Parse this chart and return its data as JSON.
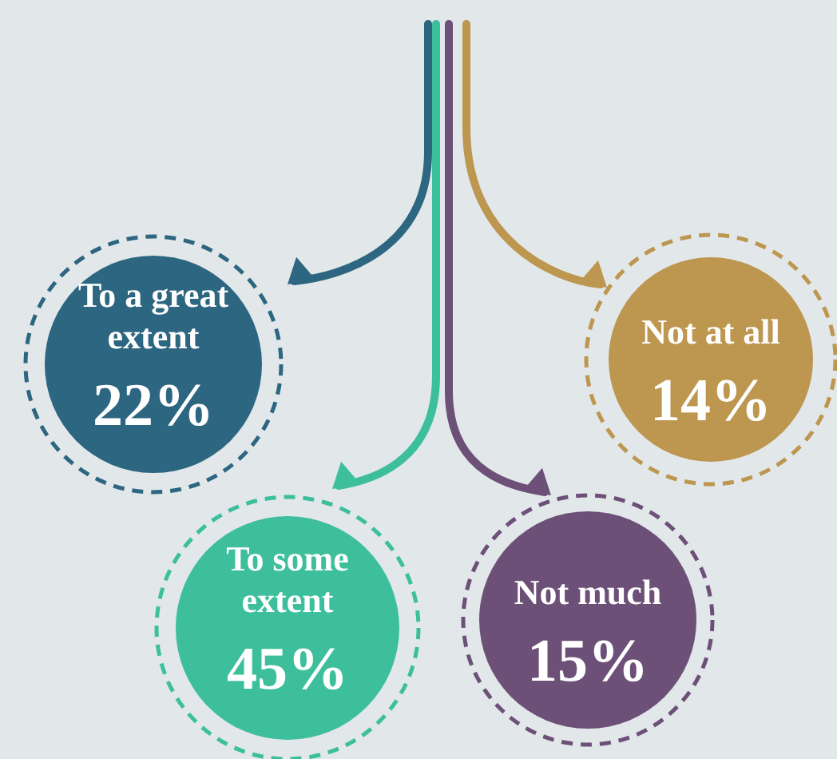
{
  "chart_data": {
    "type": "other",
    "categories": [
      "To a great extent",
      "To some extent",
      "Not much",
      "Not at all"
    ],
    "values": [
      22,
      45,
      15,
      14
    ],
    "value_labels": [
      "22%",
      "45%",
      "15%",
      "14%"
    ],
    "colors": [
      "#2c6680",
      "#3dbf9c",
      "#6c5077",
      "#bd964f"
    ]
  }
}
